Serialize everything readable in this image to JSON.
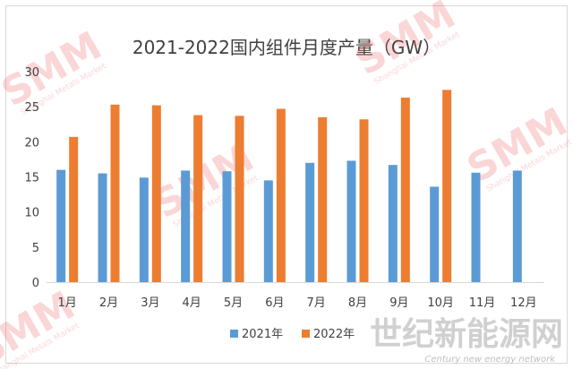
{
  "chart_data": {
    "type": "bar",
    "title": "2021-2022国内组件月度产量（GW）",
    "categories": [
      "1月",
      "2月",
      "3月",
      "4月",
      "5月",
      "6月",
      "7月",
      "8月",
      "9月",
      "10月",
      "11月",
      "12月"
    ],
    "series": [
      {
        "name": "2021年",
        "color": "#5b9bd5",
        "values": [
          16.0,
          15.5,
          14.9,
          15.9,
          15.8,
          14.5,
          17.0,
          17.3,
          16.7,
          13.6,
          15.6,
          15.9
        ]
      },
      {
        "name": "2022年",
        "color": "#ed7d31",
        "values": [
          20.7,
          25.3,
          25.2,
          23.8,
          23.7,
          24.7,
          23.5,
          23.2,
          26.3,
          27.4,
          null,
          null
        ]
      }
    ],
    "yticks": [
      0,
      5,
      10,
      15,
      20,
      25,
      30
    ],
    "ylim": [
      0,
      30
    ],
    "grid": false,
    "legend_position": "bottom"
  },
  "watermark": {
    "brand": "SMM",
    "tagline": "Shanghai Metals Market",
    "site_cn": "世纪新能源网",
    "site_en": "Century new energy network"
  }
}
